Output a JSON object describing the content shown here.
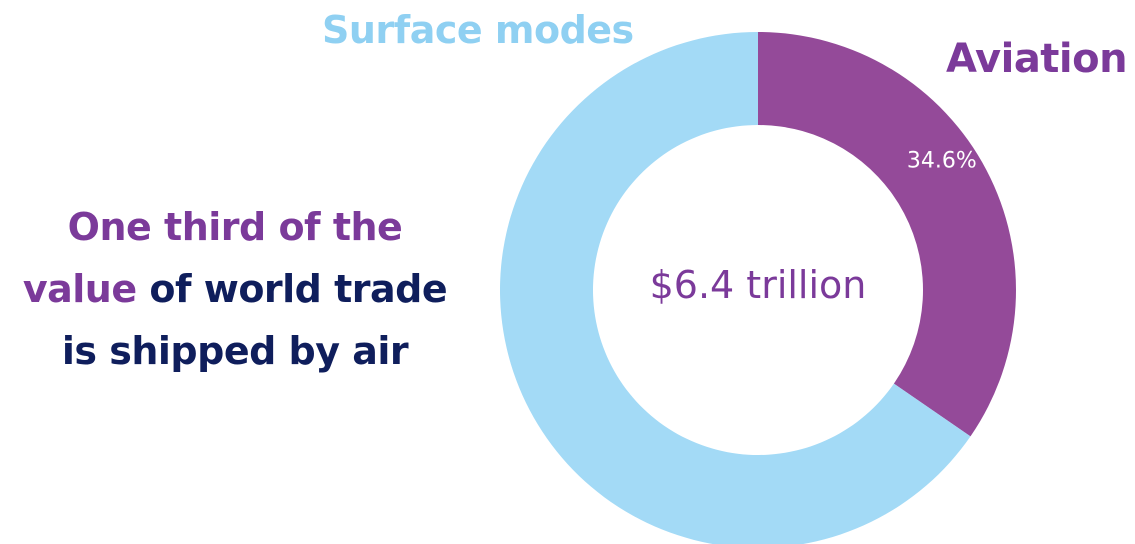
{
  "headline": {
    "part1": "One third of the",
    "part2_accent": "value",
    "part2_rest": " of world trade",
    "part3": "is shipped by air"
  },
  "chart_data": {
    "type": "pie",
    "categories": [
      "Aviation",
      "Surface modes"
    ],
    "values": [
      34.6,
      65.4
    ],
    "value_labels": [
      "34.6%",
      ""
    ],
    "colors": [
      "#944a99",
      "#a3daf6"
    ],
    "center_label": "$6.4 trillion",
    "series_labels": {
      "surface": "Surface modes",
      "aviation": "Aviation"
    }
  }
}
